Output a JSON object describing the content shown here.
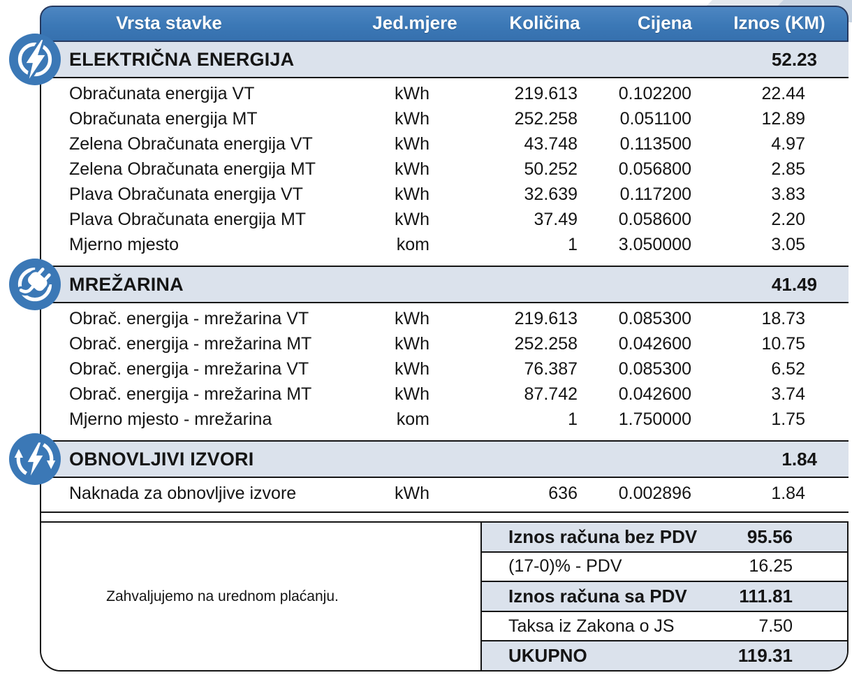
{
  "page": {
    "thanks_message": "Zahvaljujemo na urednom plaćanju."
  },
  "colors": {
    "accent_blue": "#3b78b6",
    "header_border_navy": "#26395f",
    "band_background": "#dbe2ec",
    "rule_dark": "#151515",
    "corner_decor_light": "#e3e8ee",
    "corner_decor_blue": "#c9d5e3"
  },
  "table": {
    "headers": {
      "item": "Vrsta stavke",
      "unit": "Jed.mjere",
      "quantity": "Količina",
      "price": "Cijena",
      "amount": "Iznos (KM)"
    },
    "sections": [
      {
        "title": "ELEKTRIČNA ENERGIJA",
        "total": "52.23",
        "icon": "electricity-icon",
        "rows": [
          {
            "item": "Obračunata energija VT",
            "unit": "kWh",
            "quantity": "219.613",
            "price": "0.102200",
            "amount": "22.44"
          },
          {
            "item": "Obračunata energija MT",
            "unit": "kWh",
            "quantity": "252.258",
            "price": "0.051100",
            "amount": "12.89"
          },
          {
            "item": "Zelena Obračunata energija VT",
            "unit": "kWh",
            "quantity": "43.748",
            "price": "0.113500",
            "amount": "4.97"
          },
          {
            "item": "Zelena Obračunata energija MT",
            "unit": "kWh",
            "quantity": "50.252",
            "price": "0.056800",
            "amount": "2.85"
          },
          {
            "item": "Plava Obračunata energija VT",
            "unit": "kWh",
            "quantity": "32.639",
            "price": "0.117200",
            "amount": "3.83"
          },
          {
            "item": "Plava Obračunata energija MT",
            "unit": "kWh",
            "quantity": "37.49",
            "price": "0.058600",
            "amount": "2.20"
          },
          {
            "item": "Mjerno mjesto",
            "unit": "kom",
            "quantity": "1",
            "price": "3.050000",
            "amount": "3.05"
          }
        ]
      },
      {
        "title": "MREŽARINA",
        "total": "41.49",
        "icon": "grid-network-icon",
        "rows": [
          {
            "item": "Obrač. energija - mrežarina VT",
            "unit": "kWh",
            "quantity": "219.613",
            "price": "0.085300",
            "amount": "18.73"
          },
          {
            "item": "Obrač. energija - mrežarina MT",
            "unit": "kWh",
            "quantity": "252.258",
            "price": "0.042600",
            "amount": "10.75"
          },
          {
            "item": "Obrač. energija - mrežarina VT",
            "unit": "kWh",
            "quantity": "76.387",
            "price": "0.085300",
            "amount": "6.52"
          },
          {
            "item": "Obrač. energija - mrežarina MT",
            "unit": "kWh",
            "quantity": "87.742",
            "price": "0.042600",
            "amount": "3.74"
          },
          {
            "item": "Mjerno mjesto - mrežarina",
            "unit": "kom",
            "quantity": "1",
            "price": "1.750000",
            "amount": "1.75"
          }
        ]
      },
      {
        "title": "OBNOVLJIVI IZVORI",
        "total": "1.84",
        "icon": "renewable-energy-icon",
        "rows": [
          {
            "item": "Naknada za obnovljive izvore",
            "unit": "kWh",
            "quantity": "636",
            "price": "0.002896",
            "amount": "1.84"
          }
        ]
      }
    ],
    "summary": [
      {
        "label": "Iznos računa bez PDV",
        "value": "95.56",
        "emphasis": true
      },
      {
        "label": "(17-0)% - PDV",
        "value": "16.25",
        "emphasis": false
      },
      {
        "label": "Iznos računa sa PDV",
        "value": "111.81",
        "emphasis": true
      },
      {
        "label": "Taksa iz Zakona o JS",
        "value": "7.50",
        "emphasis": false
      },
      {
        "label": "UKUPNO",
        "value": "119.31",
        "emphasis": true
      }
    ]
  }
}
